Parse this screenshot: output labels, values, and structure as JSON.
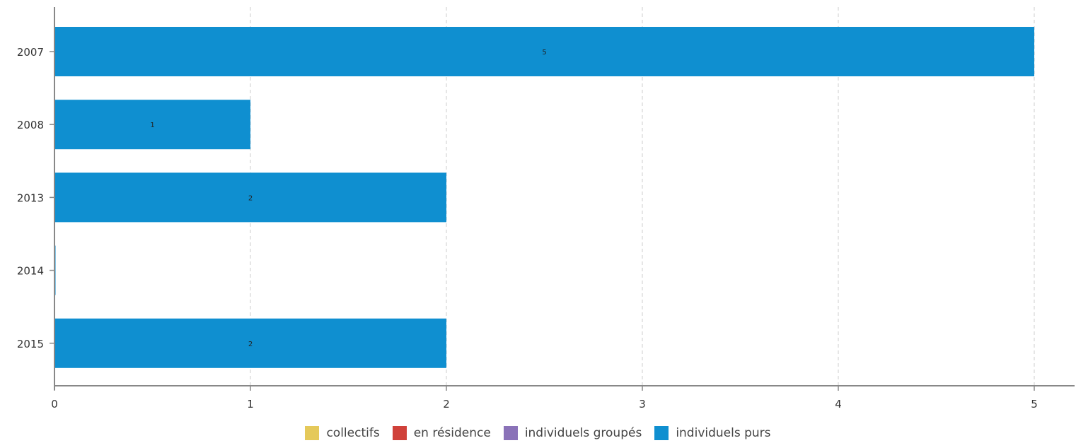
{
  "chart_data": {
    "type": "bar",
    "orientation": "horizontal",
    "stacked": true,
    "categories": [
      "2007",
      "2008",
      "2013",
      "2014",
      "2015"
    ],
    "series": [
      {
        "name": "collectifs",
        "color": "#e5c95a",
        "values": [
          0,
          0,
          0,
          0,
          0
        ]
      },
      {
        "name": "en résidence",
        "color": "#d0413a",
        "values": [
          0,
          0,
          0,
          0,
          0
        ]
      },
      {
        "name": "individuels groupés",
        "color": "#8a72b8",
        "values": [
          0,
          0,
          0,
          0,
          0
        ]
      },
      {
        "name": "individuels purs",
        "color": "#0f8fd0",
        "values": [
          5,
          1,
          2,
          0,
          2
        ]
      }
    ],
    "data_labels": [
      "5",
      "1",
      "2",
      "",
      "2"
    ],
    "xlim": [
      0,
      5
    ],
    "x_ticks": [
      "0",
      "1",
      "2",
      "3",
      "4",
      "5"
    ],
    "grid": "vertical dashed",
    "legend_position": "bottom"
  }
}
